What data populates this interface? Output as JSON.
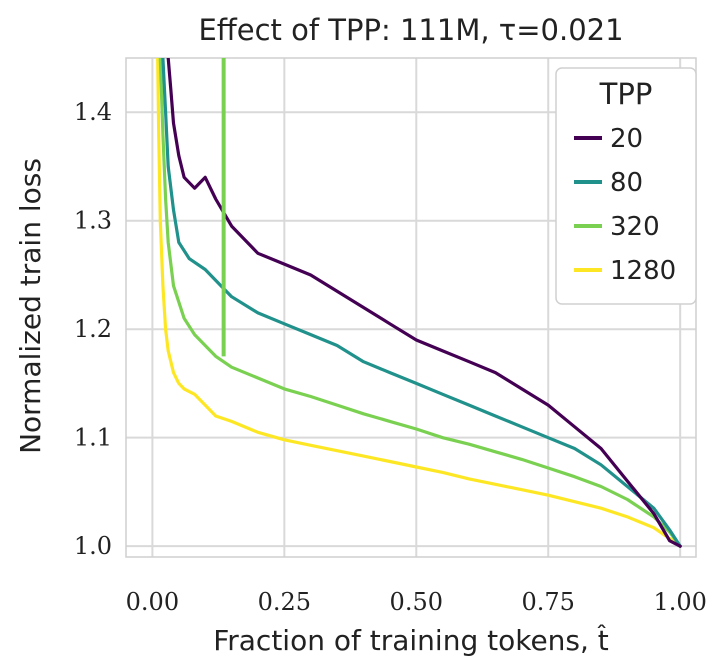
{
  "chart_data": {
    "type": "line",
    "title": "Effect of TPP: 111M, τ=0.021",
    "xlabel": "Fraction of training tokens, t̂",
    "ylabel": "Normalized train loss",
    "xlim": [
      -0.05,
      1.03
    ],
    "ylim": [
      0.99,
      1.45
    ],
    "x_ticks": [
      0.0,
      0.25,
      0.5,
      0.75,
      1.0
    ],
    "x_tick_labels": [
      "0.00",
      "0.25",
      "0.50",
      "0.75",
      "1.00"
    ],
    "y_ticks": [
      1.0,
      1.1,
      1.2,
      1.3,
      1.4
    ],
    "y_tick_labels": [
      "1.0",
      "1.1",
      "1.2",
      "1.3",
      "1.4"
    ],
    "grid": true,
    "legend": {
      "title": "TPP",
      "position": "top-right"
    },
    "series": [
      {
        "name": "20",
        "color": "#440154",
        "x": [
          0.03,
          0.035,
          0.04,
          0.05,
          0.06,
          0.08,
          0.09,
          0.1,
          0.12,
          0.15,
          0.2,
          0.25,
          0.3,
          0.35,
          0.4,
          0.45,
          0.5,
          0.55,
          0.6,
          0.65,
          0.7,
          0.75,
          0.8,
          0.85,
          0.9,
          0.95,
          0.98,
          1.0
        ],
        "y": [
          1.45,
          1.42,
          1.39,
          1.36,
          1.34,
          1.33,
          1.335,
          1.34,
          1.32,
          1.295,
          1.27,
          1.26,
          1.25,
          1.235,
          1.22,
          1.205,
          1.19,
          1.18,
          1.17,
          1.16,
          1.145,
          1.13,
          1.11,
          1.09,
          1.06,
          1.03,
          1.005,
          1.0
        ]
      },
      {
        "name": "80",
        "color": "#21918c",
        "x": [
          0.02,
          0.025,
          0.03,
          0.04,
          0.05,
          0.07,
          0.1,
          0.12,
          0.15,
          0.2,
          0.25,
          0.3,
          0.35,
          0.4,
          0.45,
          0.5,
          0.55,
          0.6,
          0.65,
          0.7,
          0.75,
          0.8,
          0.85,
          0.9,
          0.95,
          0.98,
          1.0
        ],
        "y": [
          1.45,
          1.4,
          1.35,
          1.31,
          1.28,
          1.265,
          1.255,
          1.245,
          1.23,
          1.215,
          1.205,
          1.195,
          1.185,
          1.17,
          1.16,
          1.15,
          1.14,
          1.13,
          1.12,
          1.11,
          1.1,
          1.09,
          1.075,
          1.055,
          1.035,
          1.015,
          1.0
        ]
      },
      {
        "name": "320",
        "color": "#7ad151",
        "x": [
          0.015,
          0.02,
          0.025,
          0.03,
          0.04,
          0.06,
          0.08,
          0.1,
          0.12,
          0.15,
          0.2,
          0.25,
          0.3,
          0.35,
          0.4,
          0.45,
          0.5,
          0.55,
          0.6,
          0.65,
          0.7,
          0.75,
          0.8,
          0.85,
          0.9,
          0.95,
          0.98,
          1.0
        ],
        "y": [
          1.45,
          1.38,
          1.32,
          1.28,
          1.24,
          1.21,
          1.195,
          1.185,
          1.175,
          1.165,
          1.155,
          1.145,
          1.138,
          1.13,
          1.122,
          1.115,
          1.108,
          1.1,
          1.094,
          1.087,
          1.08,
          1.072,
          1.064,
          1.055,
          1.043,
          1.027,
          1.013,
          1.0
        ]
      },
      {
        "name": "1280",
        "color": "#fde725",
        "x": [
          0.01,
          0.012,
          0.015,
          0.02,
          0.025,
          0.03,
          0.04,
          0.05,
          0.06,
          0.08,
          0.1,
          0.12,
          0.15,
          0.2,
          0.25,
          0.3,
          0.35,
          0.4,
          0.45,
          0.5,
          0.55,
          0.6,
          0.65,
          0.7,
          0.75,
          0.8,
          0.85,
          0.9,
          0.95,
          0.98,
          1.0
        ],
        "y": [
          1.45,
          1.38,
          1.3,
          1.24,
          1.2,
          1.18,
          1.16,
          1.15,
          1.145,
          1.14,
          1.13,
          1.12,
          1.115,
          1.105,
          1.098,
          1.093,
          1.088,
          1.083,
          1.078,
          1.073,
          1.068,
          1.062,
          1.057,
          1.052,
          1.047,
          1.041,
          1.035,
          1.027,
          1.017,
          1.007,
          1.0
        ]
      }
    ],
    "annotations": [
      {
        "series": "320",
        "type": "spike",
        "x": 0.135,
        "y_from": 1.175,
        "y_to": 1.45
      }
    ]
  }
}
